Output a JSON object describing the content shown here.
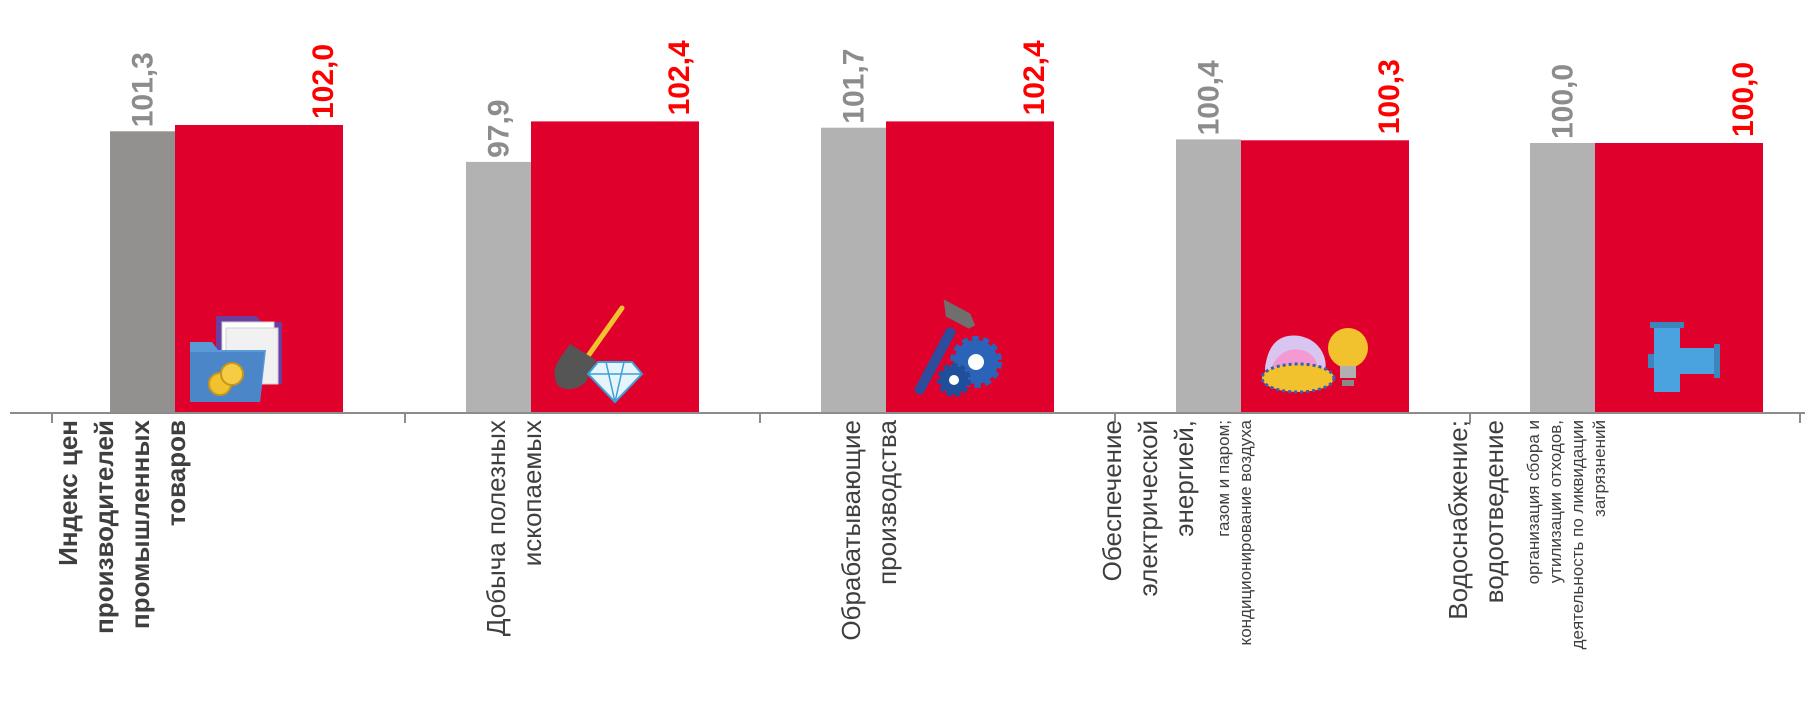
{
  "chart_data": {
    "type": "bar",
    "title": "",
    "xlabel": "",
    "ylabel": "",
    "ylim": [
      70,
      103
    ],
    "categories": [
      {
        "lines": [
          {
            "text": "Индекс цен",
            "style": "bold"
          },
          {
            "text": "производителей",
            "style": "bold"
          },
          {
            "text": "промышленных",
            "style": "bold"
          },
          {
            "text": "товаров",
            "style": "bold"
          }
        ],
        "icon": "folder-coins-icon"
      },
      {
        "lines": [
          {
            "text": "Добыча полезных",
            "style": "normal"
          },
          {
            "text": "ископаемых",
            "style": "normal"
          }
        ],
        "icon": "shovel-diamond-icon"
      },
      {
        "lines": [
          {
            "text": "Обрабатывающие",
            "style": "normal"
          },
          {
            "text": "производства",
            "style": "normal"
          }
        ],
        "icon": "hammer-gear-icon"
      },
      {
        "lines": [
          {
            "text": "Обеспечение",
            "style": "normal"
          },
          {
            "text": "электрической",
            "style": "normal"
          },
          {
            "text": "энергией,",
            "style": "normal"
          },
          {
            "text": "газом и паром;",
            "style": "small"
          },
          {
            "text": "кондиционирование воздуха",
            "style": "small"
          }
        ],
        "icon": "gas-flame-lightbulb-icon"
      },
      {
        "lines": [
          {
            "text": "Водоснабжение;",
            "style": "normal"
          },
          {
            "text": "водоотведение",
            "style": "normal"
          },
          {
            "text": "организация сбора и",
            "style": "small"
          },
          {
            "text": "утилизации отходов,",
            "style": "small"
          },
          {
            "text": "деятельность по ликвидации",
            "style": "small"
          },
          {
            "text": "загрязнений",
            "style": "small"
          }
        ],
        "icon": "water-pipe-icon"
      }
    ],
    "series": [
      {
        "values": [
          101.3,
          97.9,
          101.7,
          100.4,
          100.0
        ],
        "labels": [
          "101,3",
          "97,9",
          "101,7",
          "100,4",
          "100,0"
        ],
        "color": "#b3b2b2",
        "first_color": "#939190",
        "label_color": "#8c8c8c"
      },
      {
        "values": [
          102.0,
          102.4,
          102.4,
          100.3,
          100.0
        ],
        "labels": [
          "102,0",
          "102,4",
          "102,4",
          "100,3",
          "100,0"
        ],
        "color": "#e0002c",
        "label_color": "#ff0000"
      }
    ],
    "axis_color": "#8c8c8c",
    "grid": false,
    "legend": "none"
  }
}
